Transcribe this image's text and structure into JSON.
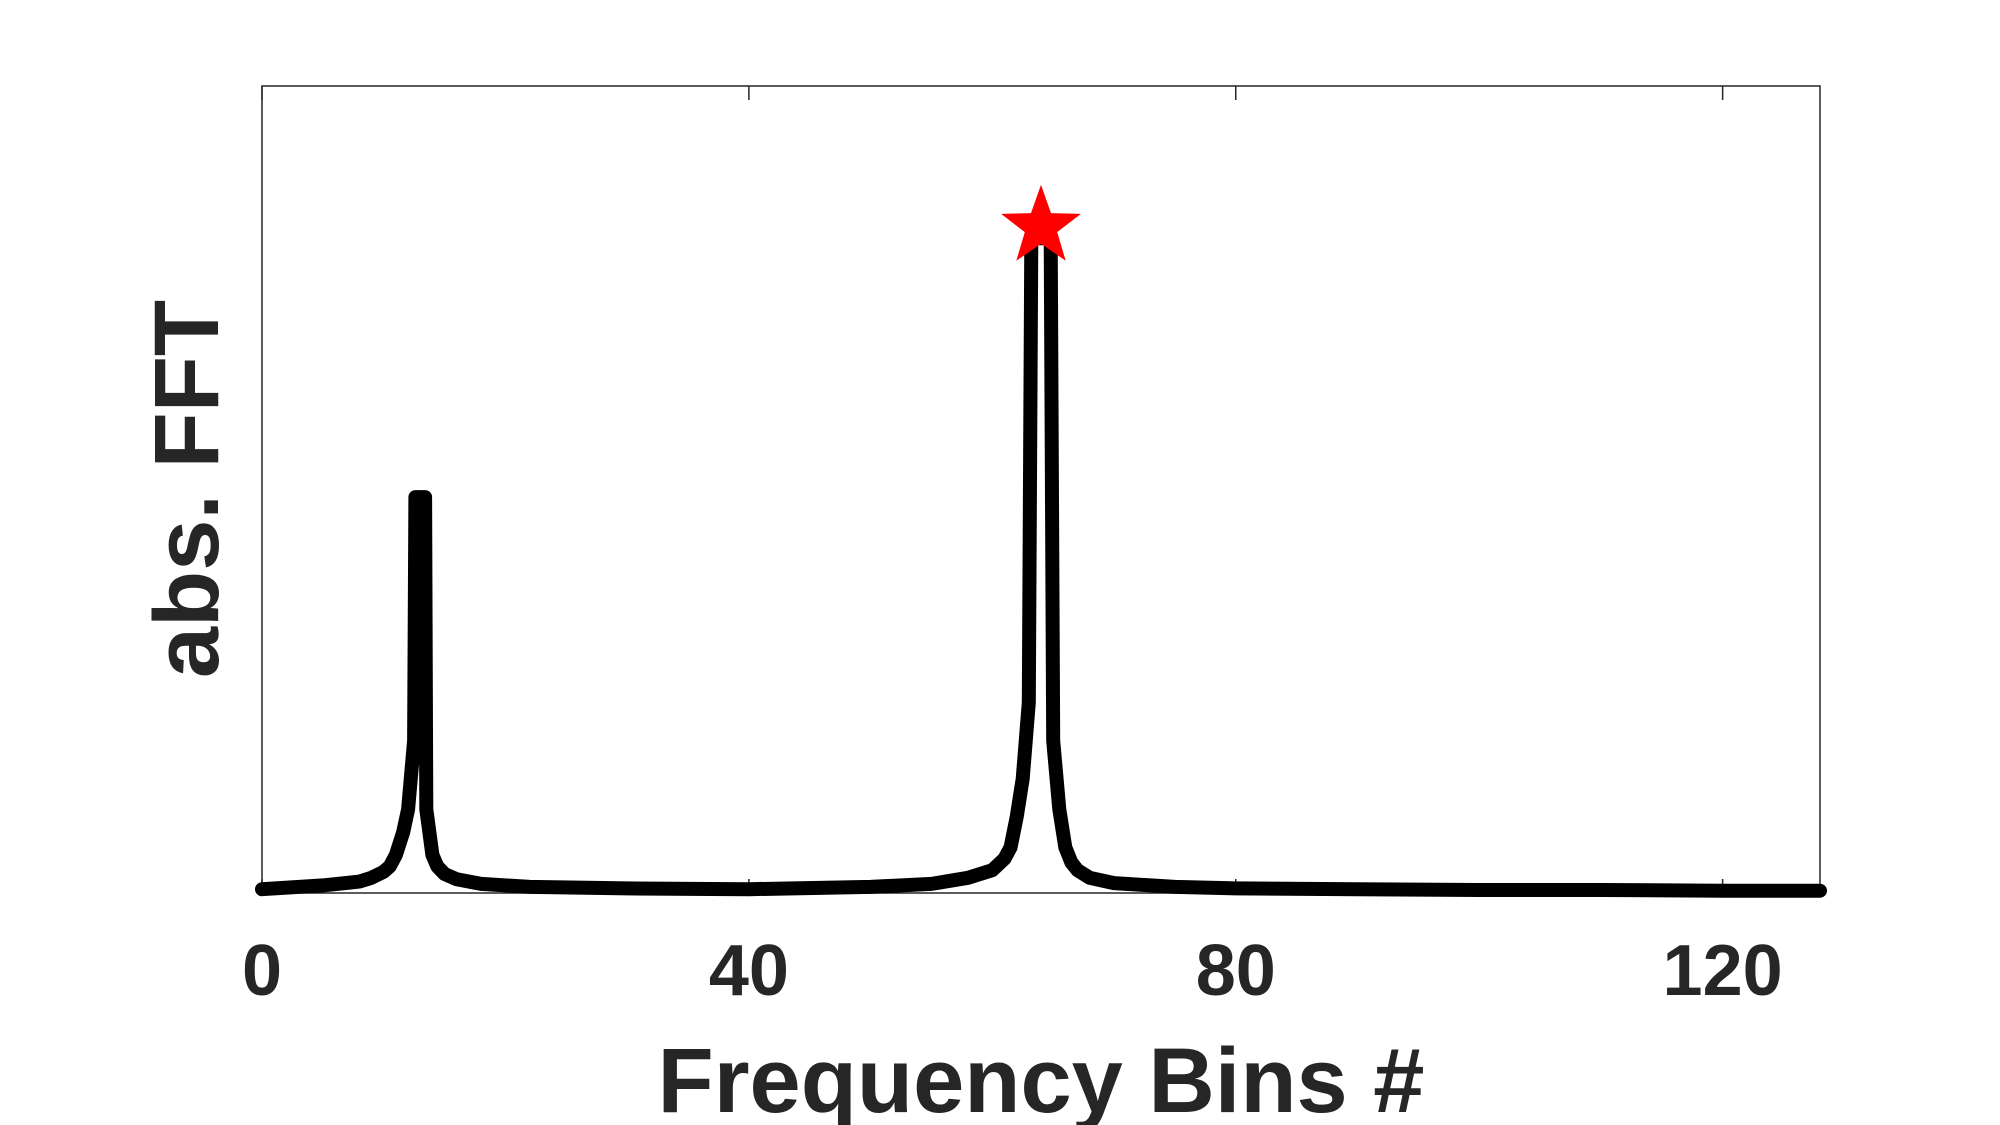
{
  "chart_data": {
    "type": "line",
    "title": "",
    "xlabel": "Frequency Bins #",
    "ylabel": "abs. FFT",
    "xlim": [
      0,
      128
    ],
    "ylim": [
      0,
      1.06
    ],
    "x_ticks": [
      0,
      40,
      80,
      120
    ],
    "x_tick_labels": [
      "0",
      "40",
      "80",
      "120"
    ],
    "y_ticks": [],
    "grid": false,
    "legend": "none",
    "colors": {
      "line": "#000000",
      "marker": "#ff0000",
      "axes": "#262626"
    },
    "series": [
      {
        "x": [
          0,
          5,
          8,
          9,
          10,
          10.5,
          11,
          11.6,
          12,
          12.5,
          12.6,
          13.4,
          13.5,
          14,
          14.4,
          15,
          16,
          18,
          22,
          30,
          40,
          50,
          55,
          58,
          60,
          61,
          61.5,
          62,
          62.5,
          63,
          63.2,
          64.8,
          65,
          65.5,
          66,
          66.5,
          67,
          68,
          70,
          75,
          80,
          90,
          100,
          110,
          120,
          128
        ],
        "y": [
          0.005,
          0.01,
          0.015,
          0.02,
          0.028,
          0.035,
          0.05,
          0.08,
          0.11,
          0.2,
          0.52,
          0.52,
          0.11,
          0.05,
          0.035,
          0.025,
          0.018,
          0.012,
          0.008,
          0.006,
          0.005,
          0.008,
          0.012,
          0.02,
          0.03,
          0.045,
          0.06,
          0.1,
          0.15,
          0.25,
          0.86,
          0.86,
          0.2,
          0.11,
          0.06,
          0.04,
          0.03,
          0.02,
          0.013,
          0.008,
          0.006,
          0.005,
          0.004,
          0.004,
          0.003,
          0.003
        ]
      }
    ],
    "marker": {
      "shape": "star",
      "x": 64,
      "y": 0.875
    }
  }
}
